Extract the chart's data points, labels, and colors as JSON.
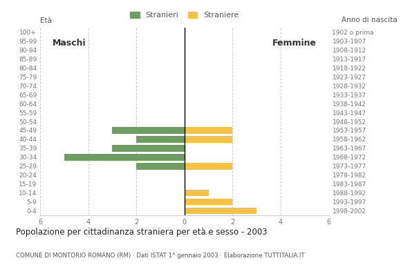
{
  "age_groups": [
    "100+",
    "95-99",
    "90-94",
    "85-89",
    "80-84",
    "75-79",
    "70-74",
    "65-69",
    "60-64",
    "55-59",
    "50-54",
    "45-49",
    "40-44",
    "35-39",
    "30-34",
    "25-29",
    "20-24",
    "15-19",
    "10-14",
    "5-9",
    "0-4"
  ],
  "birth_years": [
    "1902 o prima",
    "1903-1907",
    "1908-1912",
    "1913-1917",
    "1918-1922",
    "1923-1927",
    "1928-1932",
    "1933-1937",
    "1938-1942",
    "1943-1947",
    "1948-1952",
    "1953-1957",
    "1958-1962",
    "1963-1967",
    "1968-1972",
    "1973-1977",
    "1978-1982",
    "1983-1987",
    "1988-1992",
    "1993-1997",
    "1998-2002"
  ],
  "males": [
    0,
    0,
    0,
    0,
    0,
    0,
    0,
    0,
    0,
    0,
    0,
    3,
    2,
    3,
    5,
    2,
    0,
    0,
    0,
    0,
    0
  ],
  "females": [
    0,
    0,
    0,
    0,
    0,
    0,
    0,
    0,
    0,
    0,
    0,
    2,
    2,
    0,
    0,
    2,
    0,
    0,
    1,
    2,
    3
  ],
  "male_color": "#6e9e5f",
  "female_color": "#f5c242",
  "title": "Popolazione per cittadinanza straniera per età e sesso - 2003",
  "subtitle": "COMUNE DI MONTORIO ROMANO (RM) · Dati ISTAT 1° gennaio 2003 · Elaborazione TUTTITALIA.IT",
  "legend_male": "Stranieri",
  "legend_female": "Straniere",
  "xlim": 6,
  "ylabel_left": "Età",
  "ylabel_right": "Anno di nascita",
  "label_maschi": "Maschi",
  "label_femmine": "Femmine",
  "bg_color": "#ffffff",
  "grid_color": "#cccccc",
  "axis_label_color": "#555555",
  "tick_label_color": "#777777",
  "bar_height": 0.75
}
